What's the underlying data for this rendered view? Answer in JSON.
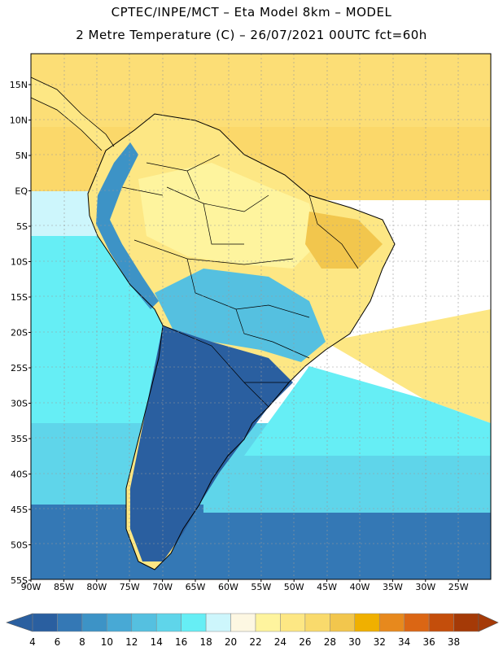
{
  "title_line1": "CPTEC/INPE/MCT –  Eta Model 8km – MODEL",
  "title_line2": "2 Metre Temperature (C) – 26/07/2021 00UTC fct=60h",
  "lat_labels": [
    "15N",
    "10N",
    "5N",
    "EQ",
    "5S",
    "10S",
    "15S",
    "20S",
    "25S",
    "30S",
    "35S",
    "40S",
    "45S",
    "50S",
    "55S"
  ],
  "lon_labels": [
    "90W",
    "85W",
    "80W",
    "75W",
    "70W",
    "65W",
    "60W",
    "55W",
    "50W",
    "45W",
    "40W",
    "35W",
    "30W",
    "25W"
  ],
  "colorbar": {
    "ticks": [
      "4",
      "6",
      "8",
      "10",
      "12",
      "14",
      "16",
      "18",
      "20",
      "22",
      "24",
      "26",
      "28",
      "30",
      "32",
      "34",
      "36",
      "38"
    ],
    "colors": [
      "#2a5fa0",
      "#3478b5",
      "#3d93c6",
      "#48a9d5",
      "#55c0e0",
      "#5fd5ea",
      "#66eef5",
      "#cdf6fc",
      "#fdf7e2",
      "#fef49e",
      "#fde784",
      "#f9da6c",
      "#f2c64d",
      "#f0b000",
      "#e7891d",
      "#db6614",
      "#c44e0b",
      "#a53a07"
    ],
    "left_arrow": "#2a5fa0",
    "right_arrow": "#a53a07"
  },
  "map_layers": {
    "ocean_north": "#fbd86a",
    "ocean_north_far": "#fde27e",
    "ocean_equator": "#cdf6fc",
    "ocean_pacific_mid": "#66eef5",
    "ocean_south": "#5fd5ea",
    "ocean_far_south": "#3478b5",
    "land_warm": "#fde784",
    "land_hot": "#f2c64d",
    "land_mild": "#fef49e",
    "land_cool": "#55c0e0",
    "land_cold": "#2a5fa0",
    "land_andes": "#3d93c6"
  }
}
